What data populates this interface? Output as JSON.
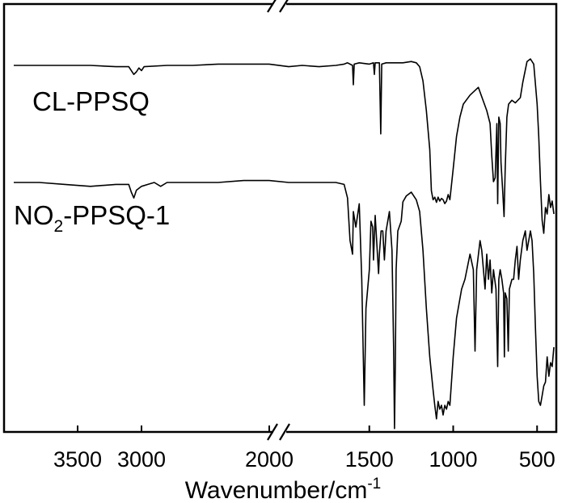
{
  "chart_data": {
    "type": "line",
    "title": "",
    "xlabel": "Wavenumber/cm",
    "xlabel_superscript": "-1",
    "ylabel": "",
    "x_reversed": true,
    "x_axis_break": [
      2000,
      2000
    ],
    "x_segments": [
      [
        4000,
        2000
      ],
      [
        2000,
        400
      ]
    ],
    "x_ticks": [
      3500,
      3000,
      2000,
      1500,
      1000,
      500
    ],
    "x_tick_labels": [
      "3500",
      "3000",
      "2000",
      "1500",
      "1000",
      "500"
    ],
    "y_ticks_shown": false,
    "grid": false,
    "legend": "none",
    "series": [
      {
        "name": "CL-PPSQ",
        "label_parts": [
          {
            "text": "CL-PPSQ"
          }
        ],
        "points": [
          [
            4000,
            0.05
          ],
          [
            3800,
            0.05
          ],
          [
            3600,
            0.05
          ],
          [
            3400,
            0.05
          ],
          [
            3200,
            0.06
          ],
          [
            3100,
            0.06
          ],
          [
            3080,
            0.09
          ],
          [
            3060,
            0.12
          ],
          [
            3040,
            0.1
          ],
          [
            3020,
            0.07
          ],
          [
            3000,
            0.09
          ],
          [
            2980,
            0.06
          ],
          [
            2800,
            0.05
          ],
          [
            2600,
            0.05
          ],
          [
            2400,
            0.04
          ],
          [
            2200,
            0.04
          ],
          [
            2000,
            0.04
          ],
          [
            1980,
            0.06
          ],
          [
            1900,
            0.05
          ],
          [
            1800,
            0.06
          ],
          [
            1700,
            0.05
          ],
          [
            1650,
            0.04
          ],
          [
            1630,
            0.03
          ],
          [
            1600,
            0.05
          ],
          [
            1595,
            0.2
          ],
          [
            1590,
            0.04
          ],
          [
            1560,
            0.03
          ],
          [
            1500,
            0.04
          ],
          [
            1475,
            0.03
          ],
          [
            1470,
            0.12
          ],
          [
            1465,
            0.03
          ],
          [
            1440,
            0.03
          ],
          [
            1432,
            0.58
          ],
          [
            1426,
            0.04
          ],
          [
            1400,
            0.03
          ],
          [
            1350,
            0.03
          ],
          [
            1300,
            0.03
          ],
          [
            1250,
            0.02
          ],
          [
            1220,
            0.03
          ],
          [
            1200,
            0.06
          ],
          [
            1180,
            0.17
          ],
          [
            1160,
            0.4
          ],
          [
            1140,
            0.7
          ],
          [
            1130,
            1.02
          ],
          [
            1120,
            1.09
          ],
          [
            1110,
            1.07
          ],
          [
            1100,
            1.11
          ],
          [
            1090,
            1.07
          ],
          [
            1080,
            1.1
          ],
          [
            1070,
            1.08
          ],
          [
            1060,
            1.09
          ],
          [
            1050,
            1.12
          ],
          [
            1040,
            1.1
          ],
          [
            1030,
            1.05
          ],
          [
            1020,
            1.09
          ],
          [
            1000,
            0.85
          ],
          [
            980,
            0.6
          ],
          [
            960,
            0.45
          ],
          [
            940,
            0.35
          ],
          [
            900,
            0.28
          ],
          [
            850,
            0.22
          ],
          [
            800,
            0.4
          ],
          [
            780,
            0.5
          ],
          [
            770,
            0.75
          ],
          [
            760,
            0.95
          ],
          [
            750,
            0.92
          ],
          [
            740,
            0.5
          ],
          [
            735,
            1.12
          ],
          [
            728,
            0.45
          ],
          [
            720,
            0.5
          ],
          [
            715,
            0.8
          ],
          [
            705,
            1.02
          ],
          [
            697,
            1.22
          ],
          [
            690,
            0.85
          ],
          [
            680,
            0.45
          ],
          [
            670,
            0.35
          ],
          [
            650,
            0.32
          ],
          [
            630,
            0.34
          ],
          [
            600,
            0.3
          ],
          [
            585,
            0.18
          ],
          [
            560,
            0.02
          ],
          [
            540,
            0.0
          ],
          [
            520,
            0.04
          ],
          [
            500,
            0.35
          ],
          [
            490,
            0.6
          ],
          [
            480,
            0.95
          ],
          [
            470,
            1.25
          ],
          [
            460,
            1.35
          ],
          [
            450,
            1.15
          ],
          [
            440,
            1.2
          ],
          [
            430,
            1.05
          ],
          [
            420,
            1.15
          ],
          [
            410,
            1.1
          ],
          [
            400,
            1.2
          ]
        ]
      },
      {
        "name": "NO2-PPSQ-1",
        "label_parts": [
          {
            "text": "NO"
          },
          {
            "text": "2",
            "sub": true
          },
          {
            "text": "-PPSQ-1"
          }
        ],
        "points": [
          [
            4000,
            0.05
          ],
          [
            3800,
            0.05
          ],
          [
            3600,
            0.06
          ],
          [
            3400,
            0.07
          ],
          [
            3200,
            0.06
          ],
          [
            3100,
            0.06
          ],
          [
            3080,
            0.1
          ],
          [
            3060,
            0.13
          ],
          [
            3040,
            0.09
          ],
          [
            3000,
            0.07
          ],
          [
            2950,
            0.06
          ],
          [
            2900,
            0.05
          ],
          [
            2850,
            0.07
          ],
          [
            2800,
            0.05
          ],
          [
            2600,
            0.05
          ],
          [
            2400,
            0.05
          ],
          [
            2200,
            0.04
          ],
          [
            2000,
            0.04
          ],
          [
            1980,
            0.05
          ],
          [
            1900,
            0.05
          ],
          [
            1800,
            0.05
          ],
          [
            1700,
            0.05
          ],
          [
            1650,
            0.06
          ],
          [
            1630,
            0.13
          ],
          [
            1615,
            0.35
          ],
          [
            1600,
            0.42
          ],
          [
            1595,
            0.2
          ],
          [
            1580,
            0.28
          ],
          [
            1560,
            0.16
          ],
          [
            1545,
            0.55
          ],
          [
            1530,
            1.2
          ],
          [
            1520,
            0.7
          ],
          [
            1500,
            0.5
          ],
          [
            1490,
            0.25
          ],
          [
            1480,
            0.28
          ],
          [
            1475,
            0.45
          ],
          [
            1465,
            0.22
          ],
          [
            1445,
            0.52
          ],
          [
            1440,
            0.42
          ],
          [
            1430,
            0.3
          ],
          [
            1420,
            0.3
          ],
          [
            1410,
            0.45
          ],
          [
            1400,
            0.3
          ],
          [
            1380,
            0.2
          ],
          [
            1365,
            0.4
          ],
          [
            1355,
            0.9
          ],
          [
            1350,
            1.32
          ],
          [
            1345,
            1.0
          ],
          [
            1340,
            0.5
          ],
          [
            1330,
            0.3
          ],
          [
            1310,
            0.25
          ],
          [
            1300,
            0.15
          ],
          [
            1280,
            0.12
          ],
          [
            1250,
            0.1
          ],
          [
            1220,
            0.14
          ],
          [
            1200,
            0.2
          ],
          [
            1180,
            0.4
          ],
          [
            1160,
            0.7
          ],
          [
            1140,
            0.95
          ],
          [
            1120,
            1.12
          ],
          [
            1110,
            1.2
          ],
          [
            1100,
            1.27
          ],
          [
            1090,
            1.18
          ],
          [
            1080,
            1.22
          ],
          [
            1070,
            1.2
          ],
          [
            1060,
            1.25
          ],
          [
            1050,
            1.2
          ],
          [
            1040,
            1.22
          ],
          [
            1030,
            1.18
          ],
          [
            1020,
            1.2
          ],
          [
            1000,
            0.95
          ],
          [
            980,
            0.75
          ],
          [
            950,
            0.6
          ],
          [
            930,
            0.55
          ],
          [
            900,
            0.42
          ],
          [
            880,
            0.5
          ],
          [
            870,
            0.92
          ],
          [
            860,
            0.5
          ],
          [
            840,
            0.35
          ],
          [
            830,
            0.4
          ],
          [
            820,
            0.5
          ],
          [
            810,
            0.6
          ],
          [
            800,
            0.42
          ],
          [
            790,
            0.55
          ],
          [
            780,
            0.45
          ],
          [
            770,
            0.62
          ],
          [
            760,
            0.5
          ],
          [
            745,
            0.6
          ],
          [
            735,
            1.0
          ],
          [
            728,
            0.55
          ],
          [
            720,
            0.5
          ],
          [
            710,
            0.55
          ],
          [
            700,
            0.62
          ],
          [
            695,
            0.95
          ],
          [
            690,
            0.62
          ],
          [
            680,
            0.65
          ],
          [
            672,
            0.92
          ],
          [
            665,
            0.6
          ],
          [
            650,
            0.55
          ],
          [
            640,
            0.55
          ],
          [
            630,
            0.45
          ],
          [
            620,
            0.38
          ],
          [
            610,
            0.55
          ],
          [
            600,
            0.45
          ],
          [
            585,
            0.35
          ],
          [
            570,
            0.3
          ],
          [
            560,
            0.4
          ],
          [
            550,
            0.35
          ],
          [
            540,
            0.3
          ],
          [
            530,
            0.35
          ],
          [
            520,
            0.52
          ],
          [
            510,
            0.8
          ],
          [
            500,
            1.05
          ],
          [
            490,
            1.18
          ],
          [
            480,
            1.2
          ],
          [
            470,
            1.15
          ],
          [
            460,
            1.1
          ],
          [
            450,
            1.08
          ],
          [
            440,
            0.95
          ],
          [
            430,
            1.05
          ],
          [
            420,
            0.98
          ],
          [
            410,
            1.0
          ],
          [
            400,
            0.9
          ]
        ]
      }
    ]
  }
}
